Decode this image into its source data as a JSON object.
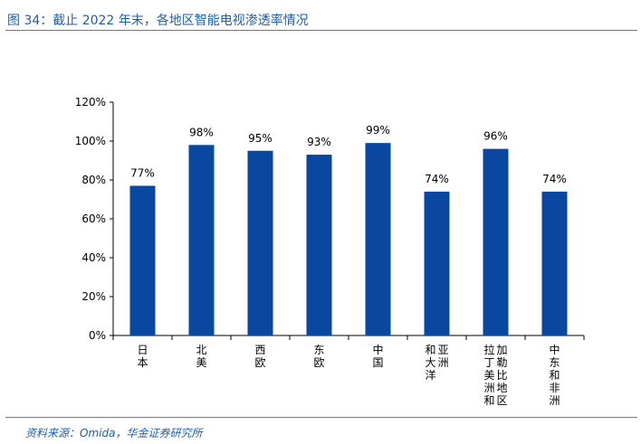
{
  "figure": {
    "title": "图 34：截止 2022 年末，各地区智能电视渗透率情况",
    "source": "资料来源：Omida，华金证券研究所"
  },
  "colors": {
    "bar": "#0a47a0",
    "text": "#1d5fa8",
    "rule": "#4f81bd",
    "axis": "#000000"
  },
  "chart_data": {
    "type": "bar",
    "categories": [
      "日本",
      "北美",
      "西欧",
      "东欧",
      "中国",
      "亚洲和大洋洲",
      "拉丁美洲加勒比地区",
      "中东和非洲"
    ],
    "category_display": [
      [
        "日本"
      ],
      [
        "北美"
      ],
      [
        "西欧"
      ],
      [
        "东欧"
      ],
      [
        "中国"
      ],
      [
        "亚洲",
        "和大洋"
      ],
      [
        "加勒比地区",
        "拉丁美洲和"
      ],
      [
        "中东和非洲"
      ]
    ],
    "values": [
      77,
      98,
      95,
      93,
      99,
      74,
      96,
      74
    ],
    "data_labels": [
      "77%",
      "98%",
      "95%",
      "93%",
      "99%",
      "74%",
      "96%",
      "74%"
    ],
    "ylim": [
      0,
      120
    ],
    "yticks": [
      "0%",
      "20%",
      "40%",
      "60%",
      "80%",
      "100%",
      "120%"
    ],
    "grid": false,
    "legend": "none"
  }
}
